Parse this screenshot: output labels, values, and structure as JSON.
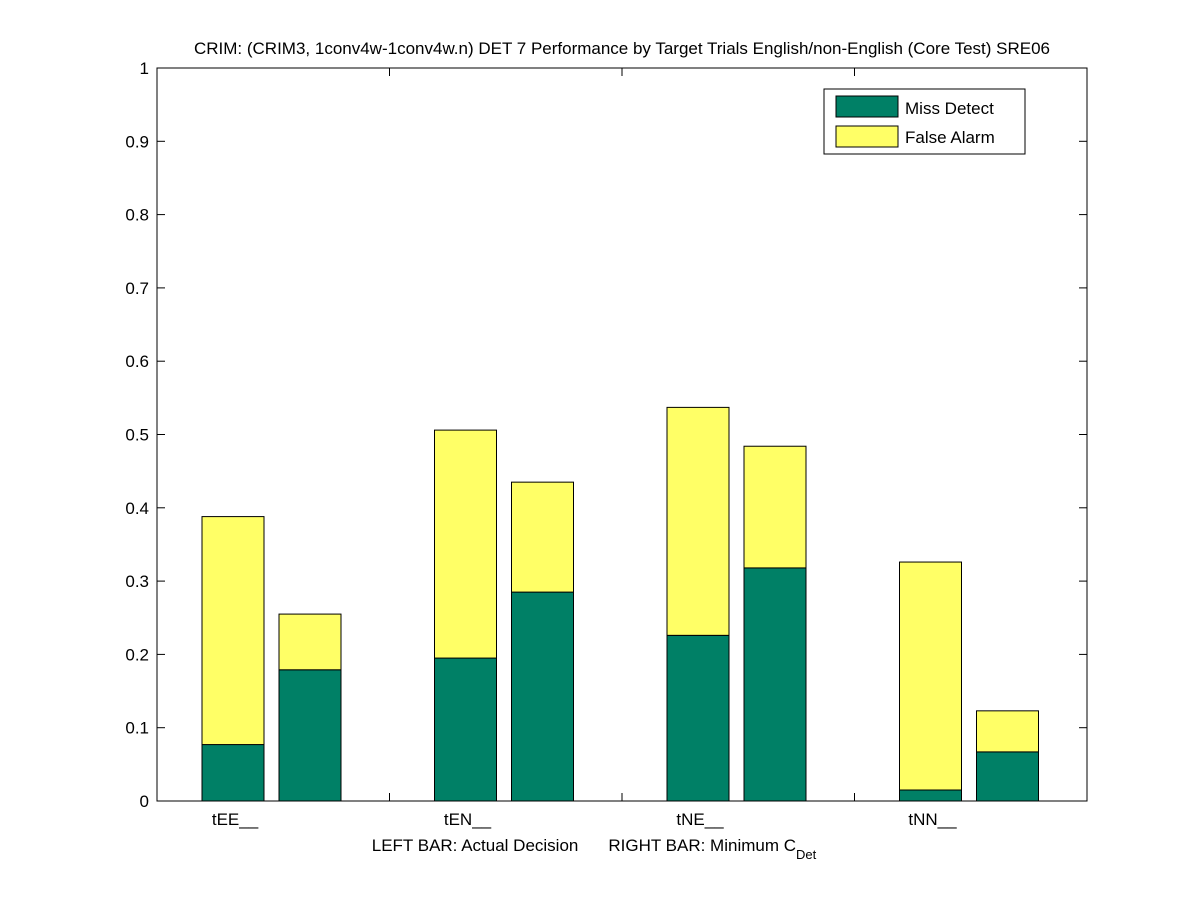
{
  "chart_data": {
    "type": "bar",
    "stacked": true,
    "title": "CRIM: (CRIM3, 1conv4w-1conv4w.n) DET 7 Performance by Target Trials English/non-English (Core Test) SRE06",
    "categories": [
      "tEE__",
      "tEN__",
      "tNE__",
      "tNN__"
    ],
    "xlabel": {
      "left": "LEFT BAR: Actual Decision",
      "right_prefix": "RIGHT BAR: Minimum C",
      "right_sub": "Det"
    },
    "ylim": [
      0,
      1
    ],
    "yticks": [
      0,
      0.1,
      0.2,
      0.3,
      0.4,
      0.5,
      0.6,
      0.7,
      0.8,
      0.9,
      1
    ],
    "ytick_labels": [
      "0",
      "0.1",
      "0.2",
      "0.3",
      "0.4",
      "0.5",
      "0.6",
      "0.7",
      "0.8",
      "0.9",
      "1"
    ],
    "colors": {
      "miss": "#008066",
      "false_alarm": "#ffff66",
      "edge": "#000000"
    },
    "legend": {
      "position": "top-right",
      "entries": [
        "Miss Detect",
        "False Alarm"
      ]
    },
    "series": [
      {
        "name": "Miss Detect",
        "actual": [
          0.077,
          0.195,
          0.226,
          0.015
        ],
        "minimum": [
          0.179,
          0.285,
          0.318,
          0.067
        ]
      },
      {
        "name": "False Alarm",
        "actual": [
          0.311,
          0.311,
          0.311,
          0.311
        ],
        "minimum": [
          0.076,
          0.15,
          0.166,
          0.056
        ]
      }
    ]
  }
}
